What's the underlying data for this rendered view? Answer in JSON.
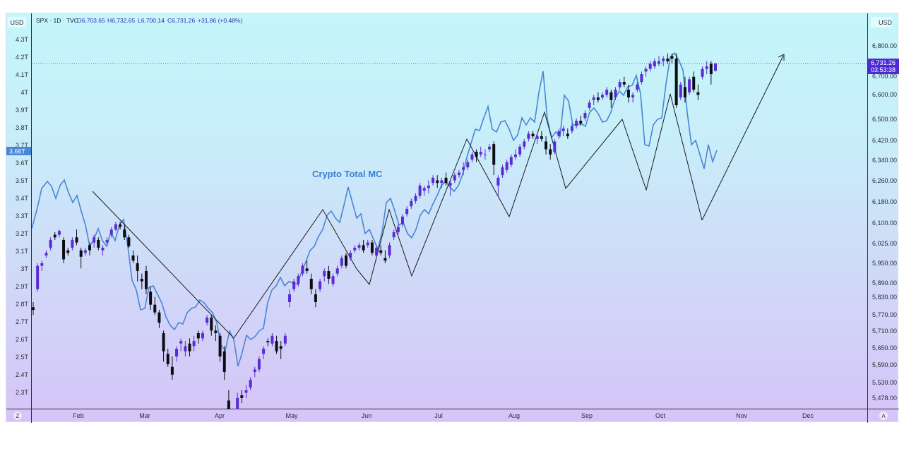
{
  "header": {
    "symbol": "SPX · 1D · TVC",
    "open": "O6,703.65",
    "high": "H6,732.65",
    "low": "L6,700.14",
    "close": "C6,731.26",
    "change": "+31.86 (+0.48%)",
    "left_currency": "USD",
    "right_currency": "USD"
  },
  "footer": {
    "left_button": "Z",
    "right_button": "A"
  },
  "colors": {
    "up_candle": "#5b2bd6",
    "down_candle": "#0d0d14",
    "crypto_line": "#4a86d4",
    "pattern_line": "#1a1a1a",
    "label_blue": "#3d7fd6",
    "price_tag_bg": "#4b2bd2"
  },
  "chart_data": {
    "type": "line",
    "title": "",
    "annotation": "Crypto Total MC",
    "left_axis_ticks": [
      "4.3T",
      "4.2T",
      "4.1T",
      "4T",
      "3.9T",
      "3.8T",
      "3.7T",
      "3.6T",
      "3.5T",
      "3.4T",
      "3.3T",
      "3.2T",
      "3.1T",
      "3T",
      "2.9T",
      "2.8T",
      "2.7T",
      "2.6T",
      "2.5T",
      "2.4T",
      "2.3T"
    ],
    "left_axis_current": "3.66T",
    "right_axis_ticks": [
      "6,800.00",
      "6,700.00",
      "6,600.00",
      "6,500.00",
      "6,420.00",
      "6,340.00",
      "6,260.00",
      "6,180.00",
      "6,100.00",
      "6,025.00",
      "5,950.00",
      "5,890.00",
      "5,830.00",
      "5,770.00",
      "5,710.00",
      "5,650.00",
      "5,590.00",
      "5,530.00",
      "5,478.00"
    ],
    "right_axis_current": "6,731.26",
    "right_axis_countdown": "03:53:38",
    "months": [
      "Feb",
      "Mar",
      "Apr",
      "May",
      "Jun",
      "Jul",
      "Aug",
      "Sep",
      "Oct",
      "Nov",
      "Dec"
    ],
    "candles": [
      [
        5790,
        5810,
        5760,
        5780
      ],
      [
        5860,
        5960,
        5850,
        5950
      ],
      [
        5950,
        5970,
        5930,
        5960
      ],
      [
        5990,
        6010,
        5980,
        6000
      ],
      [
        6020,
        6060,
        6010,
        6050
      ],
      [
        6070,
        6080,
        6050,
        6060
      ],
      [
        6070,
        6090,
        6060,
        6085
      ],
      [
        6050,
        6060,
        5960,
        5975
      ],
      [
        6010,
        6020,
        5990,
        6000
      ],
      [
        6020,
        6060,
        6010,
        6050
      ],
      [
        6060,
        6090,
        6030,
        6040
      ],
      [
        6010,
        6020,
        5940,
        5985
      ],
      [
        6000,
        6020,
        5990,
        6010
      ],
      [
        6030,
        6040,
        5990,
        6010
      ],
      [
        6040,
        6070,
        6020,
        6060
      ],
      [
        6050,
        6060,
        6010,
        6020
      ],
      [
        6010,
        6030,
        5990,
        6020
      ],
      [
        6040,
        6060,
        6030,
        6050
      ],
      [
        6070,
        6100,
        6060,
        6090
      ],
      [
        6090,
        6120,
        6085,
        6110
      ],
      [
        6110,
        6120,
        6090,
        6100
      ],
      [
        6090,
        6110,
        6050,
        6060
      ],
      [
        6060,
        6070,
        6020,
        6025
      ],
      [
        5990,
        6010,
        5960,
        5970
      ],
      [
        5960,
        5990,
        5890,
        5930
      ],
      [
        5900,
        5920,
        5860,
        5890
      ],
      [
        5930,
        5950,
        5840,
        5860
      ],
      [
        5850,
        5870,
        5780,
        5800
      ],
      [
        5800,
        5830,
        5760,
        5770
      ],
      [
        5770,
        5780,
        5710,
        5730
      ],
      [
        5690,
        5700,
        5580,
        5620
      ],
      [
        5610,
        5630,
        5560,
        5570
      ],
      [
        5560,
        5600,
        5510,
        5530
      ],
      [
        5600,
        5640,
        5580,
        5630
      ],
      [
        5650,
        5670,
        5620,
        5660
      ],
      [
        5620,
        5660,
        5600,
        5640
      ],
      [
        5650,
        5670,
        5600,
        5620
      ],
      [
        5640,
        5680,
        5620,
        5660
      ],
      [
        5690,
        5700,
        5650,
        5670
      ],
      [
        5670,
        5700,
        5660,
        5690
      ],
      [
        5730,
        5760,
        5720,
        5750
      ],
      [
        5750,
        5760,
        5680,
        5700
      ],
      [
        5700,
        5720,
        5660,
        5690
      ],
      [
        5680,
        5690,
        5580,
        5600
      ],
      [
        5620,
        5640,
        5510,
        5540
      ],
      [
        5430,
        5470,
        5330,
        5380
      ],
      [
        5340,
        5390,
        5300,
        5370
      ],
      [
        5390,
        5460,
        5360,
        5440
      ],
      [
        5450,
        5470,
        5420,
        5440
      ],
      [
        5460,
        5490,
        5440,
        5470
      ],
      [
        5480,
        5520,
        5470,
        5510
      ],
      [
        5540,
        5560,
        5520,
        5550
      ],
      [
        5550,
        5600,
        5540,
        5590
      ],
      [
        5610,
        5640,
        5590,
        5630
      ],
      [
        5660,
        5670,
        5640,
        5655
      ],
      [
        5650,
        5690,
        5640,
        5680
      ],
      [
        5660,
        5680,
        5610,
        5620
      ],
      [
        5640,
        5660,
        5590,
        5630
      ],
      [
        5650,
        5690,
        5640,
        5680
      ],
      [
        5810,
        5860,
        5790,
        5840
      ],
      [
        5860,
        5900,
        5850,
        5890
      ],
      [
        5880,
        5920,
        5870,
        5910
      ],
      [
        5920,
        5960,
        5910,
        5950
      ],
      [
        5940,
        5970,
        5920,
        5930
      ],
      [
        5900,
        5920,
        5840,
        5860
      ],
      [
        5840,
        5860,
        5790,
        5810
      ],
      [
        5860,
        5900,
        5850,
        5890
      ],
      [
        5910,
        5940,
        5890,
        5930
      ],
      [
        5930,
        5950,
        5880,
        5900
      ],
      [
        5880,
        5920,
        5870,
        5910
      ],
      [
        5920,
        5950,
        5910,
        5940
      ],
      [
        5950,
        5990,
        5940,
        5980
      ],
      [
        5990,
        6000,
        5940,
        5950
      ],
      [
        5980,
        6010,
        5970,
        6000
      ],
      [
        6010,
        6030,
        6000,
        6020
      ],
      [
        6020,
        6040,
        6010,
        6030
      ],
      [
        6030,
        6050,
        6000,
        6010
      ],
      [
        6030,
        6050,
        6020,
        6040
      ],
      [
        6040,
        6050,
        5990,
        6000
      ],
      [
        5990,
        6030,
        5980,
        6020
      ],
      [
        6010,
        6030,
        5990,
        6000
      ],
      [
        5980,
        6010,
        5960,
        5970
      ],
      [
        5990,
        6040,
        5980,
        6030
      ],
      [
        6060,
        6090,
        6050,
        6080
      ],
      [
        6080,
        6110,
        6070,
        6100
      ],
      [
        6110,
        6150,
        6100,
        6140
      ],
      [
        6150,
        6180,
        6140,
        6170
      ],
      [
        6180,
        6210,
        6170,
        6200
      ],
      [
        6200,
        6230,
        6190,
        6220
      ],
      [
        6220,
        6270,
        6210,
        6260
      ],
      [
        6240,
        6260,
        6220,
        6250
      ],
      [
        6250,
        6280,
        6230,
        6260
      ],
      [
        6270,
        6300,
        6260,
        6290
      ],
      [
        6280,
        6300,
        6250,
        6270
      ],
      [
        6270,
        6290,
        6250,
        6280
      ],
      [
        6290,
        6310,
        6260,
        6270
      ],
      [
        6260,
        6280,
        6220,
        6270
      ],
      [
        6280,
        6310,
        6270,
        6300
      ],
      [
        6300,
        6320,
        6290,
        6310
      ],
      [
        6320,
        6350,
        6300,
        6330
      ],
      [
        6330,
        6360,
        6320,
        6350
      ],
      [
        6360,
        6390,
        6350,
        6380
      ],
      [
        6390,
        6400,
        6350,
        6370
      ],
      [
        6380,
        6410,
        6370,
        6390
      ],
      [
        6380,
        6400,
        6360,
        6380
      ],
      [
        6400,
        6420,
        6390,
        6410
      ],
      [
        6420,
        6430,
        6300,
        6340
      ],
      [
        6260,
        6300,
        6220,
        6290
      ],
      [
        6300,
        6340,
        6290,
        6330
      ],
      [
        6320,
        6360,
        6310,
        6350
      ],
      [
        6340,
        6380,
        6330,
        6370
      ],
      [
        6370,
        6400,
        6360,
        6380
      ],
      [
        6380,
        6420,
        6370,
        6410
      ],
      [
        6410,
        6440,
        6400,
        6430
      ],
      [
        6440,
        6470,
        6430,
        6460
      ],
      [
        6460,
        6470,
        6440,
        6450
      ],
      [
        6440,
        6460,
        6420,
        6450
      ],
      [
        6450,
        6470,
        6430,
        6440
      ],
      [
        6430,
        6450,
        6380,
        6400
      ],
      [
        6400,
        6420,
        6360,
        6380
      ],
      [
        6390,
        6440,
        6380,
        6430
      ],
      [
        6450,
        6480,
        6440,
        6470
      ],
      [
        6470,
        6490,
        6450,
        6480
      ],
      [
        6460,
        6480,
        6440,
        6450
      ],
      [
        6470,
        6500,
        6460,
        6490
      ],
      [
        6490,
        6520,
        6480,
        6510
      ],
      [
        6510,
        6530,
        6490,
        6500
      ],
      [
        6520,
        6550,
        6510,
        6540
      ],
      [
        6560,
        6590,
        6550,
        6580
      ],
      [
        6590,
        6610,
        6570,
        6600
      ],
      [
        6600,
        6620,
        6580,
        6590
      ],
      [
        6600,
        6620,
        6590,
        6610
      ],
      [
        6610,
        6640,
        6600,
        6630
      ],
      [
        6620,
        6630,
        6560,
        6590
      ],
      [
        6600,
        6640,
        6590,
        6630
      ],
      [
        6640,
        6670,
        6630,
        6660
      ],
      [
        6660,
        6680,
        6640,
        6650
      ],
      [
        6630,
        6650,
        6580,
        6600
      ],
      [
        6600,
        6620,
        6580,
        6610
      ],
      [
        6630,
        6660,
        6620,
        6650
      ],
      [
        6660,
        6700,
        6650,
        6690
      ],
      [
        6700,
        6720,
        6680,
        6710
      ],
      [
        6710,
        6740,
        6700,
        6730
      ],
      [
        6720,
        6750,
        6710,
        6740
      ],
      [
        6730,
        6760,
        6720,
        6740
      ],
      [
        6740,
        6760,
        6720,
        6750
      ],
      [
        6750,
        6770,
        6730,
        6740
      ],
      [
        6760,
        6770,
        6730,
        6750
      ],
      [
        6750,
        6770,
        6560,
        6570
      ],
      [
        6600,
        6660,
        6590,
        6650
      ],
      [
        6640,
        6680,
        6580,
        6600
      ],
      [
        6620,
        6680,
        6610,
        6670
      ],
      [
        6680,
        6700,
        6620,
        6630
      ],
      [
        6620,
        6650,
        6590,
        6610
      ],
      [
        6680,
        6720,
        6670,
        6710
      ],
      [
        6710,
        6740,
        6690,
        6720
      ],
      [
        6730,
        6740,
        6650,
        6690
      ],
      [
        6703,
        6733,
        6700,
        6731
      ]
    ]
  }
}
